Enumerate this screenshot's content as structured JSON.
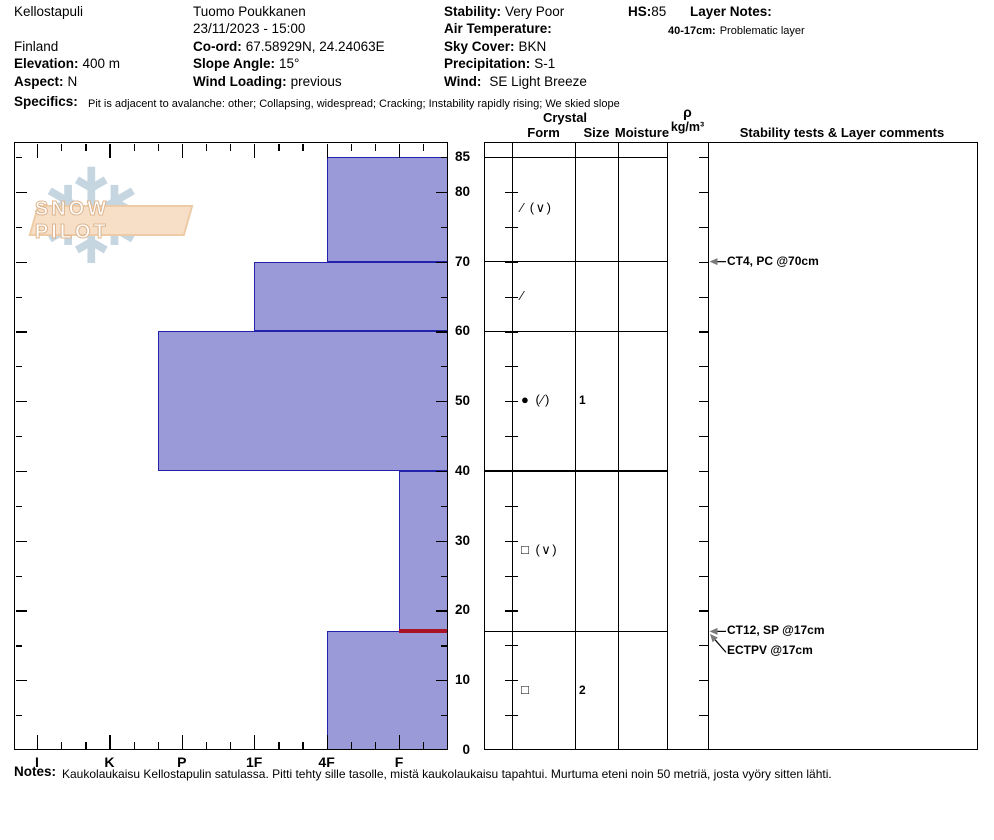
{
  "header": {
    "location": "Kellostapuli",
    "country": "Finland",
    "elevation_label": "Elevation:",
    "elevation": "400 m",
    "aspect_label": "Aspect:",
    "aspect": "N",
    "observer": "Tuomo Poukkanen",
    "datetime": "23/11/2023 - 15:00",
    "coord_label": "Co-ord:",
    "coord": "67.58929N, 24.24063E",
    "slope_angle_label": "Slope Angle:",
    "slope_angle": "15°",
    "wind_loading_label": "Wind Loading:",
    "wind_loading": "previous",
    "stability_label": "Stability:",
    "stability": "Very Poor",
    "air_temp_label": "Air Temperature:",
    "air_temp": "",
    "sky_cover_label": "Sky Cover:",
    "sky_cover": "BKN",
    "precipitation_label": "Precipitation:",
    "precipitation": "S-1",
    "wind_label": "Wind:",
    "wind": "SE Light Breeze",
    "hs_label": "HS:",
    "hs": "85",
    "layer_notes_label": "Layer Notes:",
    "layer_note_range": "40-17cm:",
    "layer_note_text": "Problematic layer",
    "specifics_label": "Specifics:",
    "specifics": "Pit is adjacent to avalanche: other;  Collapsing, widespread;  Cracking;  Instability rapidly rising;  We skied slope"
  },
  "columns": {
    "crystal": "Crystal",
    "form": "Form",
    "size": "Size",
    "moisture": "Moisture",
    "rho": "ρ",
    "rho_units": "kg/m³",
    "stability_tests": "Stability tests & Layer comments"
  },
  "watermark": {
    "text": "SNOW PILOT",
    "snowflake": "❄"
  },
  "notes_label": "Notes:",
  "notes": "Kaukolaukaisu Kellostapulin satulassa. Pitti tehty sille tasolle, mistä kaukolaukaisu tapahtui. Murtuma eteni noin 50 metriä, josta vyöry sitten lähti.",
  "chart_data": {
    "type": "bar",
    "title": "Snow pit hardness profile",
    "depth_axis": {
      "unit": "cm",
      "min": 0,
      "max": 85,
      "labels": [
        85,
        80,
        70,
        60,
        50,
        40,
        30,
        20,
        10,
        0
      ],
      "tick_minor_cm": 5,
      "tick_major_cm": 10
    },
    "hardness_axis": {
      "labels": [
        "I",
        "K",
        "P",
        "1F",
        "4F",
        "F"
      ]
    },
    "layers": [
      {
        "top_cm": 85,
        "bottom_cm": 70,
        "hardness": "4F",
        "form_symbol": "∕ (∨)",
        "grain_size": "",
        "moisture": ""
      },
      {
        "top_cm": 70,
        "bottom_cm": 60,
        "hardness": "1F",
        "form_symbol": "∕",
        "grain_size": "",
        "moisture": ""
      },
      {
        "top_cm": 60,
        "bottom_cm": 40,
        "hardness": "P+",
        "form_symbol": "● (∕)",
        "grain_size": "1",
        "moisture": ""
      },
      {
        "top_cm": 40,
        "bottom_cm": 17,
        "hardness": "F",
        "form_symbol": "□ (∨)",
        "grain_size": "",
        "moisture": ""
      },
      {
        "top_cm": 17,
        "bottom_cm": 0,
        "hardness": "4F",
        "form_symbol": "□",
        "grain_size": "2",
        "moisture": ""
      }
    ],
    "failure_plane": {
      "depth_cm": 17
    },
    "tests": [
      {
        "label": "CT4, PC @70cm",
        "depth_cm": 70,
        "arrow": "straight"
      },
      {
        "label": "CT12, SP @17cm",
        "depth_cm": 17,
        "arrow": "straight"
      },
      {
        "label": "ECTPV @17cm",
        "depth_cm": 17,
        "arrow": "angled"
      }
    ],
    "colors": {
      "bar_fill": "#9b9ad8",
      "bar_border": "#2223aa",
      "failure": "#a81425",
      "arrowhead": "#7a7a7a"
    }
  }
}
